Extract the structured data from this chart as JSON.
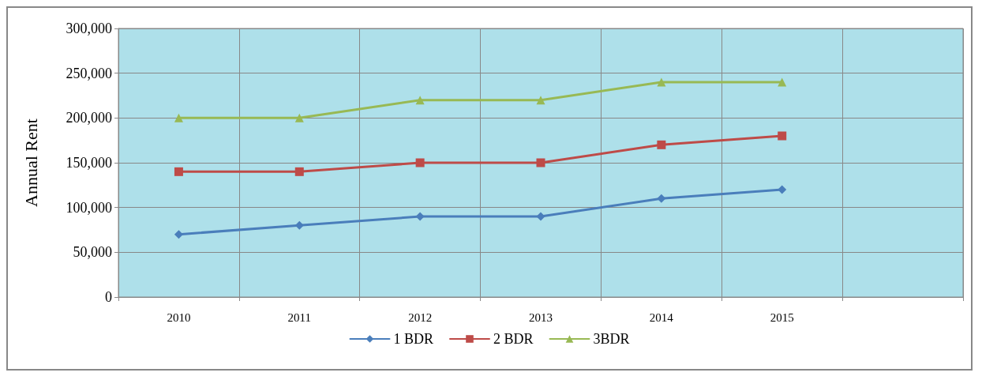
{
  "chart_data": {
    "type": "line",
    "ylabel": "Annual Rent",
    "categories": [
      "2010",
      "2011",
      "2012",
      "2013",
      "2014",
      "2015",
      null
    ],
    "series": [
      {
        "name": "1 BDR",
        "color": "#4a7ebb",
        "marker": "diamond",
        "values": [
          70000,
          80000,
          90000,
          90000,
          110000,
          120000,
          null
        ]
      },
      {
        "name": "2 BDR",
        "color": "#be4b48",
        "marker": "square",
        "values": [
          140000,
          140000,
          150000,
          150000,
          170000,
          180000,
          null
        ]
      },
      {
        "name": "3BDR",
        "color": "#98b954",
        "marker": "triangle",
        "values": [
          200000,
          200000,
          220000,
          220000,
          240000,
          240000,
          null
        ]
      }
    ],
    "ylim": [
      0,
      300000
    ],
    "yticks": [
      {
        "value": 0,
        "label": "0"
      },
      {
        "value": 50000,
        "label": "50,000"
      },
      {
        "value": 100000,
        "label": "100,000"
      },
      {
        "value": 150000,
        "label": "150,000"
      },
      {
        "value": 200000,
        "label": "200,000"
      },
      {
        "value": 250000,
        "label": "250,000"
      },
      {
        "value": 300000,
        "label": "300,000"
      }
    ],
    "grid": true,
    "legend": "bottom",
    "line_style": "solid"
  }
}
